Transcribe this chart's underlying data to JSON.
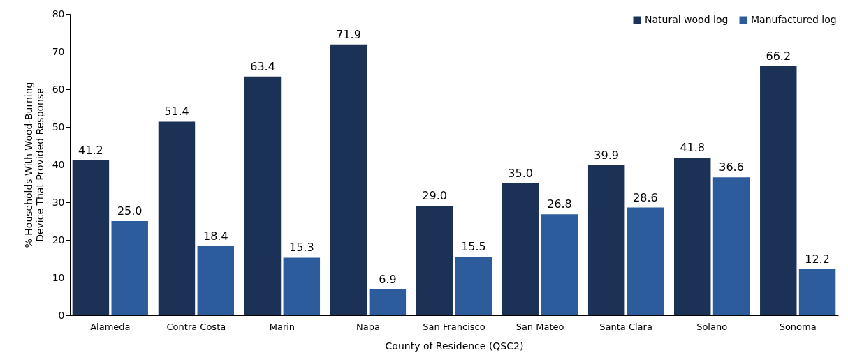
{
  "chart_data": {
    "type": "bar",
    "xlabel": "County of Residence (QSC2)",
    "ylabel": "% Households With Wood-Burning Device That Provided Response",
    "categories": [
      "Alameda",
      "Contra Costa",
      "Marin",
      "Napa",
      "San Francisco",
      "San Mateo",
      "Santa Clara",
      "Solano",
      "Sonoma"
    ],
    "series": [
      {
        "name": "Natural wood log",
        "color": "#1c3156",
        "values": [
          41.2,
          51.4,
          63.4,
          71.9,
          29.0,
          35.0,
          39.9,
          41.8,
          66.2
        ],
        "value_labels": [
          "41.2",
          "51.4",
          "63.4",
          "71.9",
          "29.0",
          "35.0",
          "39.9",
          "41.8",
          "66.2"
        ]
      },
      {
        "name": "Manufactured log",
        "color": "#2d5c9c",
        "values": [
          25.0,
          18.4,
          15.3,
          6.9,
          15.5,
          26.8,
          28.6,
          36.6,
          12.2
        ],
        "value_labels": [
          "25.0",
          "18.4",
          "15.3",
          "6.9",
          "15.5",
          "26.8",
          "28.6",
          "36.6",
          "12.2"
        ]
      }
    ],
    "ylim": [
      0,
      80
    ],
    "yticks": [
      0,
      10,
      20,
      30,
      40,
      50,
      60,
      70,
      80
    ],
    "grid": false,
    "legend": "top right"
  }
}
